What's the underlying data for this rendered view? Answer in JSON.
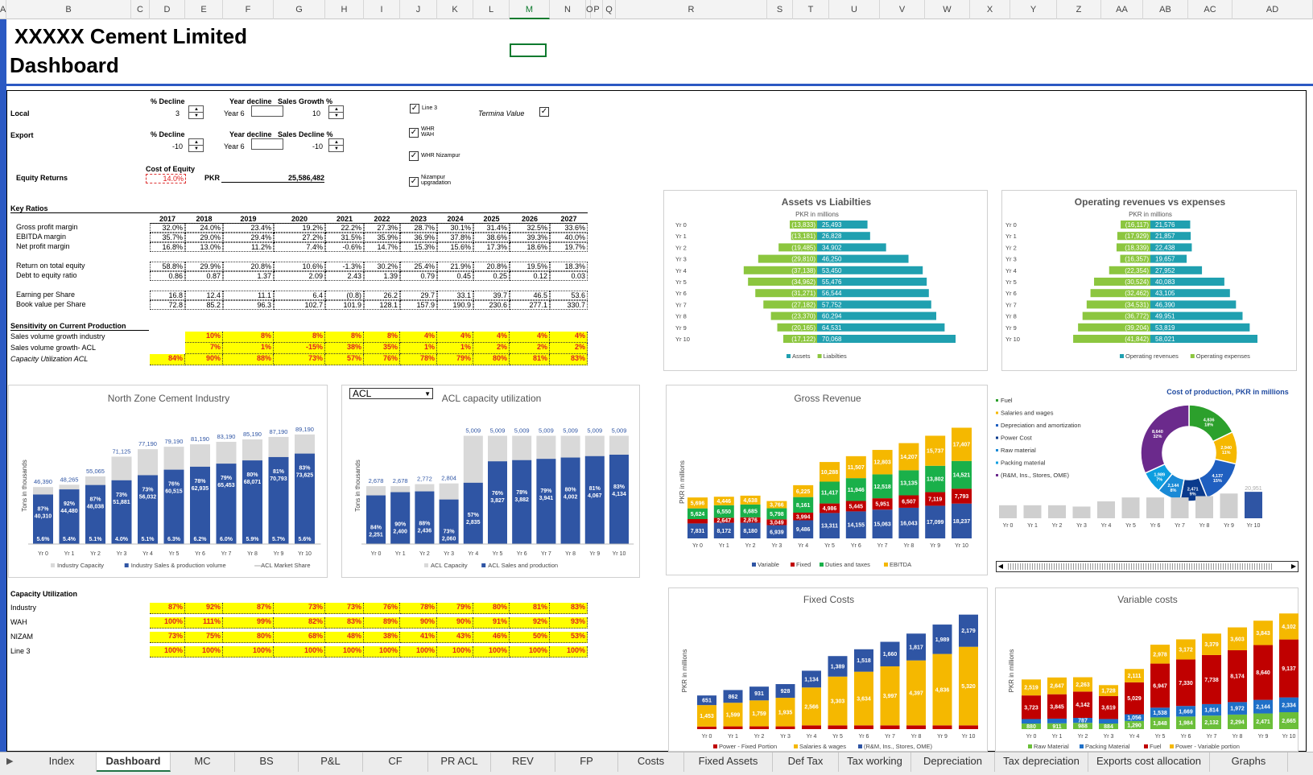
{
  "columns": [
    [
      "A",
      0,
      8
    ],
    [
      "B",
      8,
      163
    ],
    [
      "C",
      163,
      186
    ],
    [
      "D",
      186,
      230
    ],
    [
      "E",
      230,
      277
    ],
    [
      "F",
      277,
      340
    ],
    [
      "G",
      340,
      404
    ],
    [
      "H",
      404,
      452
    ],
    [
      "I",
      452,
      497
    ],
    [
      "J",
      497,
      543
    ],
    [
      "K",
      543,
      588
    ],
    [
      "L",
      588,
      633
    ],
    [
      "M",
      633,
      683
    ],
    [
      "N",
      683,
      728
    ],
    [
      "O",
      728,
      734
    ],
    [
      "P",
      734,
      749
    ],
    [
      "Q",
      749,
      765
    ],
    [
      "R",
      765,
      953
    ],
    [
      "S",
      953,
      985
    ],
    [
      "T",
      985,
      1030
    ],
    [
      "U",
      1030,
      1093
    ],
    [
      "V",
      1093,
      1149
    ],
    [
      "W",
      1149,
      1205
    ],
    [
      "X",
      1205,
      1255
    ],
    [
      "Y",
      1255,
      1313
    ],
    [
      "Z",
      1313,
      1368
    ],
    [
      "AA",
      1368,
      1420
    ],
    [
      "AB",
      1420,
      1476
    ],
    [
      "AC",
      1476,
      1531
    ],
    [
      "AD",
      1531,
      1631
    ]
  ],
  "title": {
    "company": "XXXXX Cement Limited",
    "subtitle": "Dashboard"
  },
  "controls": {
    "local": "Local",
    "export": "Export",
    "pct_decline": "% Decline",
    "year_decline": "Year decline",
    "sales_growth": "Sales Growth %",
    "sales_decline": "Sales Decline %",
    "local_decline": "3",
    "local_year": "Year 6",
    "local_growth": "10",
    "export_decline": "-10",
    "export_year": "Year 6",
    "export_salesdecline": "-10",
    "equity_returns": "Equity Returns",
    "cost_of_equity": "Cost of Equity",
    "coe_val": "14.0%",
    "pkr": "PKR",
    "pkr_val": "25,586,482",
    "cb_line3": "Line 3",
    "cb_whr_wah": "WHR WAH",
    "cb_whr_nizampur": "WHR Nizampur",
    "cb_nizampur": "Nizampur upgradation",
    "terminal": "Termina Value"
  },
  "key_ratios": {
    "title": "Key Ratios",
    "years": [
      "2017",
      "2018",
      "2019",
      "2020",
      "2021",
      "2022",
      "2023",
      "2024",
      "2025",
      "2026",
      "2027"
    ],
    "rows": [
      {
        "label": "Gross profit margin",
        "v": [
          "32.0%",
          "24.0%",
          "23.4%",
          "19.2%",
          "22.2%",
          "27.3%",
          "28.7%",
          "30.1%",
          "31.4%",
          "32.5%",
          "33.6%"
        ]
      },
      {
        "label": "EBITDA margin",
        "v": [
          "35.7%",
          "29.0%",
          "29.4%",
          "27.2%",
          "31.5%",
          "35.9%",
          "36.9%",
          "37.8%",
          "38.6%",
          "39.3%",
          "40.0%"
        ]
      },
      {
        "label": "Net profit margin",
        "v": [
          "16.8%",
          "13.0%",
          "11.2%",
          "7.4%",
          "-0.6%",
          "14.7%",
          "15.3%",
          "15.6%",
          "17.3%",
          "18.6%",
          "19.7%"
        ]
      },
      {
        "label": "Return on total equity",
        "v": [
          "58.8%",
          "29.9%",
          "20.8%",
          "10.6%",
          "-1.3%",
          "30.2%",
          "25.4%",
          "21.9%",
          "20.8%",
          "19.5%",
          "18.3%"
        ]
      },
      {
        "label": "Debt to equity ratio",
        "v": [
          "0.86",
          "0.87",
          "1.37",
          "2.09",
          "2.43",
          "1.39",
          "0.79",
          "0.45",
          "0.25",
          "0.12",
          "0.03"
        ]
      },
      {
        "label": "Earning per Share",
        "v": [
          "16.8",
          "12.4",
          "11.1",
          "6.4",
          "(0.8)",
          "26.2",
          "29.7",
          "33.1",
          "39.7",
          "46.5",
          "53.6"
        ]
      },
      {
        "label": "Book value per Share",
        "v": [
          "72.8",
          "85.2",
          "96.3",
          "102.7",
          "101.9",
          "128.1",
          "157.9",
          "190.9",
          "230.6",
          "277.1",
          "330.7"
        ]
      }
    ]
  },
  "sensitivity": {
    "title": "Sensitivity on Current Production",
    "rows": [
      {
        "label": "Sales volume growth industry",
        "v": [
          "",
          "10%",
          "8%",
          "8%",
          "8%",
          "8%",
          "4%",
          "4%",
          "4%",
          "4%",
          "4%"
        ]
      },
      {
        "label": "Sales volume growth- ACL",
        "v": [
          "",
          "7%",
          "1%",
          "-15%",
          "38%",
          "35%",
          "1%",
          "1%",
          "2%",
          "2%",
          "2%"
        ]
      },
      {
        "label": "Capacity Utilization ACL",
        "v": [
          "84%",
          "90%",
          "88%",
          "73%",
          "57%",
          "76%",
          "78%",
          "79%",
          "80%",
          "81%",
          "83%"
        ]
      }
    ]
  },
  "capacity": {
    "title": "Capacity Utilization",
    "rows": [
      {
        "label": "Industry",
        "v": [
          "87%",
          "92%",
          "87%",
          "73%",
          "73%",
          "76%",
          "78%",
          "79%",
          "80%",
          "81%",
          "83%"
        ]
      },
      {
        "label": "WAH",
        "v": [
          "100%",
          "111%",
          "99%",
          "82%",
          "83%",
          "89%",
          "90%",
          "90%",
          "91%",
          "92%",
          "93%"
        ]
      },
      {
        "label": "NIZAM",
        "v": [
          "73%",
          "75%",
          "80%",
          "68%",
          "48%",
          "38%",
          "41%",
          "43%",
          "46%",
          "50%",
          "53%"
        ]
      },
      {
        "label": "Line 3",
        "v": [
          "100%",
          "100%",
          "100%",
          "100%",
          "100%",
          "100%",
          "100%",
          "100%",
          "100%",
          "100%",
          "100%"
        ]
      }
    ]
  },
  "acl_dropdown": "ACL",
  "chart_data": [
    {
      "type": "bar",
      "title": "North Zone Cement Industry",
      "ylabel": "Tons in thousands",
      "categories": [
        "Yr 0",
        "Yr 1",
        "Yr 2",
        "Yr 3",
        "Yr 4",
        "Yr 5",
        "Yr 6",
        "Yr 7",
        "Yr 8",
        "Yr 9",
        "Yr 10"
      ],
      "series": [
        {
          "name": "Industry Capacity",
          "values": [
            46390,
            48265,
            55065,
            71125,
            77190,
            79190,
            81190,
            83190,
            85190,
            87190,
            89190
          ]
        },
        {
          "name": "Industry Sales & production volume",
          "values": [
            40310,
            44480,
            48038,
            51881,
            56032,
            60515,
            62935,
            65453,
            68071,
            70793,
            73625
          ]
        },
        {
          "name": "ACL Market Share",
          "values": [
            5.6,
            5.4,
            5.1,
            4.0,
            5.1,
            6.3,
            6.2,
            6.0,
            5.9,
            5.7,
            5.6
          ]
        }
      ],
      "util_labels": [
        "87%",
        "92%",
        "87%",
        "73%",
        "73%",
        "76%",
        "78%",
        "79%",
        "80%",
        "81%",
        "83%"
      ],
      "value_labels": [
        "40,310",
        "44,480",
        "48,038",
        "51,881",
        "56,032",
        "60,515",
        "62,935",
        "65,453",
        "68,071",
        "70,793",
        "73,625"
      ],
      "cap_labels": [
        "46,390",
        "48,265",
        "55,065",
        "71,125",
        "77,190",
        "79,190",
        "81,190",
        "83,190",
        "85,190",
        "87,190",
        "89,190"
      ],
      "share_labels": [
        "5.6%",
        "5.4%",
        "5.1%",
        "4.0%",
        "5.1%",
        "6.3%",
        "6.2%",
        "6.0%",
        "5.9%",
        "5.7%",
        "5.6%"
      ]
    },
    {
      "type": "bar",
      "title": "ACL capacity utilization",
      "ylabel": "Tons in thousands",
      "categories": [
        "Yr 0",
        "Yr 1",
        "Yr 2",
        "Yr 3",
        "Yr 4",
        "Yr 5",
        "Yr 6",
        "Yr 7",
        "Yr 8",
        "Yr 9",
        "Yr 10"
      ],
      "series": [
        {
          "name": "ACL Capacity",
          "values": [
            2678,
            2678,
            2772,
            2804,
            5009,
            5009,
            5009,
            5009,
            5009,
            5009,
            5009
          ]
        },
        {
          "name": "ACL Sales and production",
          "values": [
            2251,
            2400,
            2436,
            2060,
            2835,
            3827,
            3882,
            3941,
            4002,
            4067,
            4134
          ]
        }
      ],
      "util_labels": [
        "84%",
        "90%",
        "88%",
        "73%",
        "57%",
        "76%",
        "78%",
        "79%",
        "80%",
        "81%",
        "83%"
      ],
      "cap_labels": [
        "2,678",
        "2,678",
        "2,772",
        "2,804",
        "5,009",
        "5,009",
        "5,009",
        "5,009",
        "5,009",
        "5,009",
        "5,009"
      ],
      "value_labels": [
        "2,251",
        "2,400",
        "2,436",
        "2,060",
        "2,835",
        "3,827",
        "3,882",
        "3,941",
        "4,002",
        "4,067",
        "4,134"
      ]
    },
    {
      "type": "bar",
      "title": "Assets vs Liabilties",
      "subtitle": "PKR in millions",
      "categories": [
        "Yr 0",
        "Yr 1",
        "Yr 2",
        "Yr 3",
        "Yr 4",
        "Yr 5",
        "Yr 6",
        "Yr 7",
        "Yr 8",
        "Yr 9",
        "Yr 10"
      ],
      "series": [
        {
          "name": "Assets",
          "values": [
            25493,
            26828,
            34902,
            46250,
            53450,
            55476,
            56544,
            57752,
            60294,
            64531,
            70068
          ]
        },
        {
          "name": "Liabilties",
          "values": [
            -13833,
            -13181,
            -19485,
            -29810,
            -37138,
            -34962,
            -31271,
            -27182,
            -23370,
            -20165,
            -17122
          ]
        }
      ],
      "a_labels": [
        "25,493",
        "26,828",
        "34,902",
        "46,250",
        "53,450",
        "55,476",
        "56,544",
        "57,752",
        "60,294",
        "64,531",
        "70,068"
      ],
      "l_labels": [
        "(13,833)",
        "(13,181)",
        "(19,485)",
        "(29,810)",
        "(37,138)",
        "(34,962)",
        "(31,271)",
        "(27,182)",
        "(23,370)",
        "(20,165)",
        "(17,122)"
      ]
    },
    {
      "type": "bar",
      "title": "Operating revenues vs expenses",
      "subtitle": "PKR in millions",
      "categories": [
        "Yr 0",
        "Yr 1",
        "Yr 2",
        "Yr 3",
        "Yr 4",
        "Yr 5",
        "Yr 6",
        "Yr 7",
        "Yr 8",
        "Yr 9",
        "Yr 10"
      ],
      "series": [
        {
          "name": "Operating revenues",
          "values": [
            21576,
            21857,
            22438,
            19657,
            27952,
            40083,
            43105,
            46390,
            49951,
            53819,
            58021
          ]
        },
        {
          "name": "Operating expenses",
          "values": [
            -16117,
            -17929,
            -18339,
            -16357,
            -22354,
            -30524,
            -32462,
            -34531,
            -36772,
            -39204,
            -41842
          ]
        }
      ],
      "a_labels": [
        "21,576",
        "21,857",
        "22,438",
        "19,657",
        "27,952",
        "40,083",
        "43,105",
        "46,390",
        "49,951",
        "53,819",
        "58,021"
      ],
      "l_labels": [
        "(16,117)",
        "(17,929)",
        "(18,339)",
        "(16,357)",
        "(22,354)",
        "(30,524)",
        "(32,462)",
        "(34,531)",
        "(36,772)",
        "(39,204)",
        "(41,842)"
      ]
    },
    {
      "type": "bar",
      "title": "Gross Revenue",
      "ylabel": "PKR in millions",
      "categories": [
        "Yr 0",
        "Yr 1",
        "Yr 2",
        "Yr 3",
        "Yr 4",
        "Yr 5",
        "Yr 6",
        "Yr 7",
        "Yr 8",
        "Yr 9",
        "Yr 10"
      ],
      "series": [
        {
          "name": "Variable",
          "values": [
            7831,
            8172,
            8180,
            6939,
            9486,
            13311,
            14155,
            15063,
            16043,
            17099,
            18237
          ]
        },
        {
          "name": "Fixed",
          "values": [
            2278,
            2647,
            2876,
            3049,
            3994,
            4986,
            5445,
            5951,
            6507,
            7119,
            7793
          ]
        },
        {
          "name": "Duties and taxes",
          "values": [
            5624,
            6550,
            6685,
            5798,
            8161,
            11417,
            11946,
            12518,
            13135,
            13802,
            14521
          ]
        },
        {
          "name": "EBITDA",
          "values": [
            5696,
            4446,
            4638,
            3766,
            6225,
            10288,
            11507,
            12803,
            14207,
            15737,
            17407
          ]
        }
      ]
    },
    {
      "type": "pie",
      "title": "Cost of production, PKR in millions",
      "labels": [
        "Fuel",
        "Salaries and wages",
        "Depreciation and amortization",
        "Power Cost",
        "Raw material",
        "Packing material",
        "(R&M, Ins., Stores, OME)"
      ],
      "values": [
        4836,
        2940,
        4137,
        2471,
        2144,
        1989,
        8640
      ],
      "pct": [
        "18%",
        "11%",
        "15%",
        "9%",
        "8%",
        "7%",
        "32%"
      ],
      "colors": [
        "#2ca02c",
        "#f5b800",
        "#1f5fc0",
        "#0a3a8c",
        "#1a8ad6",
        "#0d9ee0",
        "#6b2a8c"
      ],
      "bar_values": [
        1.0,
        1.0,
        1.0,
        0.9,
        1.3,
        1.6,
        1.6,
        1.6,
        1.7,
        1.9,
        2.03
      ],
      "bar_top_label": "20,951"
    },
    {
      "type": "bar",
      "title": "Fixed Costs",
      "ylabel": "PKR in millions",
      "categories": [
        "Yr 0",
        "Yr 1",
        "Yr 2",
        "Yr 3",
        "Yr 4",
        "Yr 5",
        "Yr 6",
        "Yr 7",
        "Yr 8",
        "Yr 9",
        "Yr 10"
      ],
      "series": [
        {
          "name": "Power - Fixed Portion",
          "values": [
            174,
            186,
            187,
            186,
            254,
            254,
            254,
            254,
            254,
            254,
            254
          ]
        },
        {
          "name": "Salaries & wages",
          "values": [
            1453,
            1599,
            1759,
            1935,
            2566,
            3303,
            3634,
            3997,
            4397,
            4836,
            5320
          ]
        },
        {
          "name": "(R&M, Ins., Stores, OME)",
          "values": [
            651,
            862,
            931,
            928,
            1134,
            1389,
            1518,
            1660,
            1817,
            1989,
            2179
          ]
        }
      ]
    },
    {
      "type": "bar",
      "title": "Variable costs",
      "ylabel": "PKR in millions",
      "categories": [
        "Yr 0",
        "Yr 1",
        "Yr 2",
        "Yr 3",
        "Yr 4",
        "Yr 5",
        "Yr 6",
        "Yr 7",
        "Yr 8",
        "Yr 9",
        "Yr 10"
      ],
      "series": [
        {
          "name": "Raw Material",
          "values": [
            880,
            911,
            988,
            884,
            1290,
            1848,
            1984,
            2132,
            2294,
            2471,
            2665
          ]
        },
        {
          "name": "Packing Material",
          "values": [
            709,
            742,
            787,
            709,
            1056,
            1538,
            1669,
            1814,
            1972,
            2144,
            2334
          ]
        },
        {
          "name": "Fuel",
          "values": [
            3723,
            3845,
            4142,
            3619,
            5029,
            6947,
            7330,
            7738,
            8174,
            8640,
            9137
          ]
        },
        {
          "name": "Power - Variable portion",
          "values": [
            2519,
            2647,
            2263,
            1728,
            2111,
            2978,
            3172,
            3379,
            3603,
            3843,
            4102
          ]
        }
      ]
    }
  ],
  "tabs": [
    "Index",
    "Dashboard",
    "MC",
    "BS",
    "P&L",
    "CF",
    "PR ACL",
    "REV",
    "FP",
    "Costs",
    "Fixed Assets",
    "Def Tax",
    "Tax working",
    "Depreciation",
    "Tax depreciation",
    "Exports cost allocation",
    "Graphs"
  ]
}
